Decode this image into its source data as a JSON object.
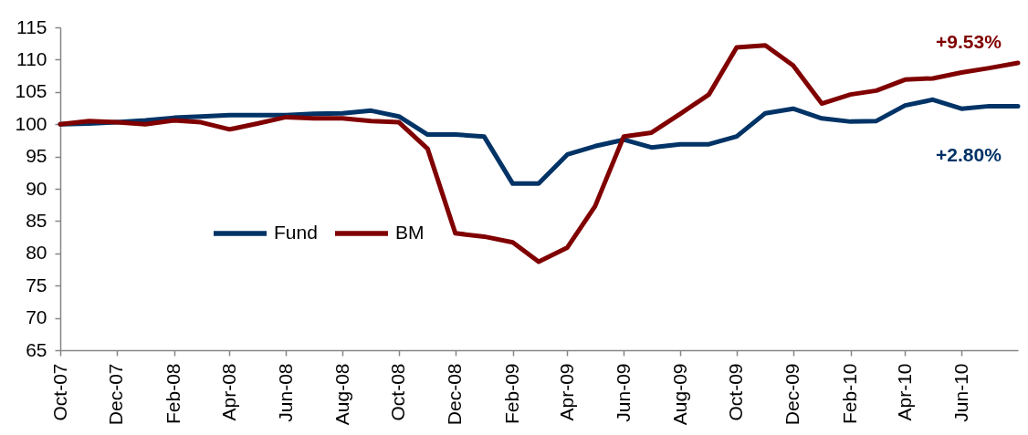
{
  "chart_data": {
    "type": "line",
    "x": [
      "2007-10",
      "2007-11",
      "2007-12",
      "2008-01",
      "2008-02",
      "2008-03",
      "2008-04",
      "2008-05",
      "2008-06",
      "2008-07",
      "2008-08",
      "2008-09",
      "2008-10",
      "2008-11",
      "2008-12",
      "2009-01",
      "2009-02",
      "2009-03",
      "2009-04",
      "2009-05",
      "2009-06",
      "2009-07",
      "2009-08",
      "2009-09",
      "2009-10",
      "2009-11",
      "2009-12",
      "2010-01",
      "2010-02",
      "2010-03",
      "2010-04",
      "2010-05",
      "2010-06",
      "2010-07",
      "2010-08"
    ],
    "xlim": [
      "2007-10",
      "2010-08"
    ],
    "xticks": [
      {
        "value": "2007-10",
        "label": "Oct-07"
      },
      {
        "value": "2007-12",
        "label": "Dec-07"
      },
      {
        "value": "2008-02",
        "label": "Feb-08"
      },
      {
        "value": "2008-04",
        "label": "Apr-08"
      },
      {
        "value": "2008-06",
        "label": "Jun-08"
      },
      {
        "value": "2008-08",
        "label": "Aug-08"
      },
      {
        "value": "2008-10",
        "label": "Oct-08"
      },
      {
        "value": "2008-12",
        "label": "Dec-08"
      },
      {
        "value": "2009-02",
        "label": "Feb-09"
      },
      {
        "value": "2009-04",
        "label": "Apr-09"
      },
      {
        "value": "2009-06",
        "label": "Jun-09"
      },
      {
        "value": "2009-08",
        "label": "Aug-09"
      },
      {
        "value": "2009-10",
        "label": "Oct-09"
      },
      {
        "value": "2009-12",
        "label": "Dec-09"
      },
      {
        "value": "2010-02",
        "label": "Feb-10"
      },
      {
        "value": "2010-04",
        "label": "Apr-10"
      },
      {
        "value": "2010-06",
        "label": "Jun-10"
      }
    ],
    "ylim": [
      65,
      115
    ],
    "yticks": [
      65,
      70,
      75,
      80,
      85,
      90,
      95,
      100,
      105,
      110,
      115
    ],
    "grid": false,
    "legend": "left",
    "series": [
      {
        "name": "Fund",
        "color": "#003366",
        "values": [
          100.0,
          100.1,
          100.3,
          100.6,
          101.0,
          101.2,
          101.4,
          101.4,
          101.4,
          101.6,
          101.7,
          102.1,
          101.2,
          98.4,
          98.4,
          98.1,
          90.8,
          90.8,
          95.3,
          96.6,
          97.6,
          96.4,
          96.9,
          96.9,
          98.1,
          101.7,
          102.4,
          100.9,
          100.4,
          100.5,
          102.9,
          103.8,
          102.4,
          102.8,
          102.8
        ]
      },
      {
        "name": "BM",
        "color": "#800000",
        "values": [
          100.0,
          100.5,
          100.3,
          100.0,
          100.6,
          100.3,
          99.2,
          100.1,
          101.1,
          100.9,
          100.9,
          100.5,
          100.3,
          96.2,
          83.1,
          82.6,
          81.7,
          78.7,
          80.9,
          87.3,
          98.1,
          98.7,
          101.6,
          104.6,
          111.9,
          112.2,
          109.1,
          103.2,
          104.6,
          105.2,
          106.9,
          107.1,
          108.0,
          108.7,
          109.5
        ]
      }
    ],
    "annotations": [
      {
        "text": "+9.53%",
        "x": "2010-08",
        "y": 109.5
      },
      {
        "text": "+2.80%",
        "x": "2010-08",
        "y": 102.8
      }
    ]
  }
}
